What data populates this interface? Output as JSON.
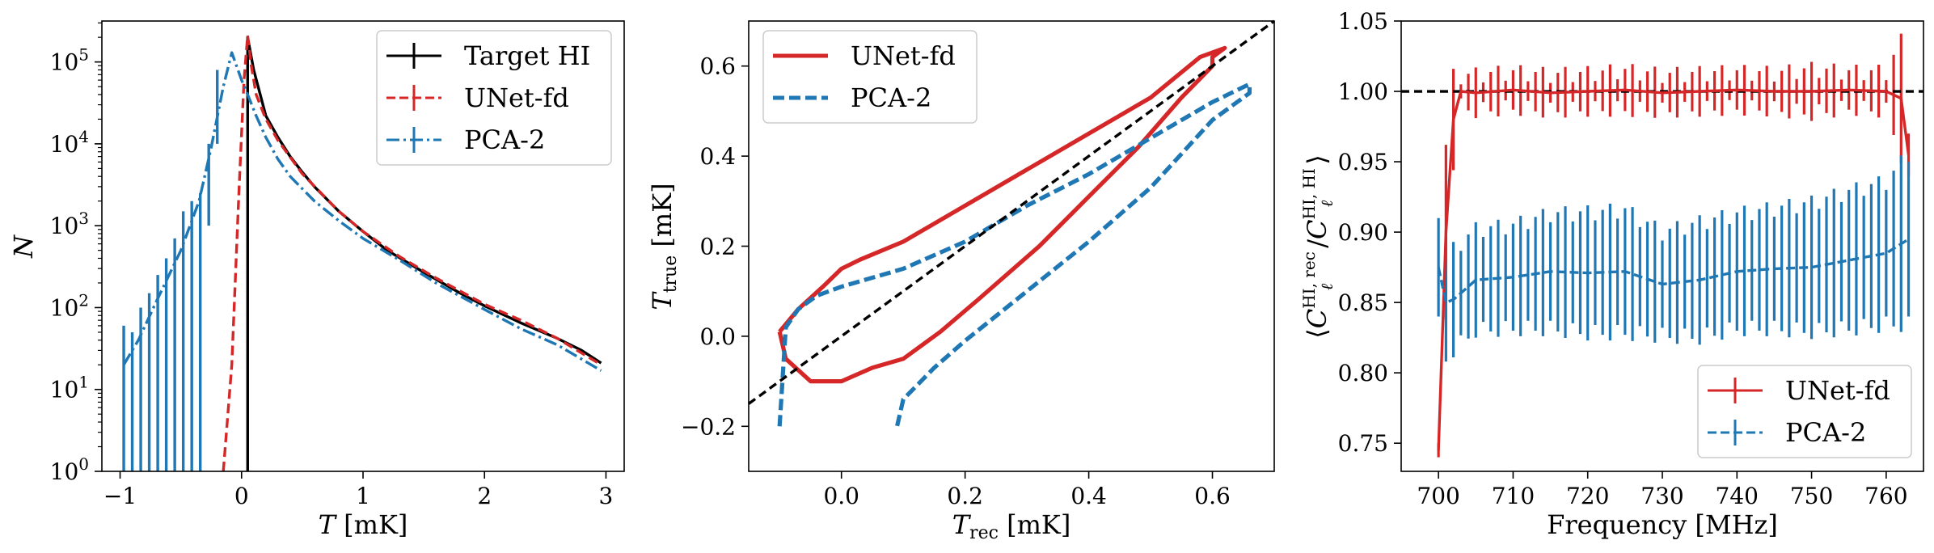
{
  "colors": {
    "black": "#000000",
    "red": "#d62728",
    "blue": "#1f77b4"
  },
  "chart_data": [
    {
      "type": "line",
      "title": "",
      "xlabel_italic": "T",
      "xlabel_rest": " [mK]",
      "ylabel": "N",
      "yscale": "log",
      "xlim": [
        -1.15,
        3.15
      ],
      "ylim_exp": [
        0,
        5.5
      ],
      "xticks": [
        -1,
        0,
        1,
        2,
        3
      ],
      "xtick_labels": [
        "−1",
        "0",
        "1",
        "2",
        "3"
      ],
      "yticks_exp": [
        0,
        1,
        2,
        3,
        4,
        5
      ],
      "ytick_base": "10",
      "ytick_exp_labels": [
        "0",
        "1",
        "2",
        "3",
        "4",
        "5"
      ],
      "legend": [
        "Target HI",
        "UNet-fd",
        "PCA-2"
      ],
      "legend_loc": "upper right",
      "series": [
        {
          "name": "Target HI",
          "color": "#000000",
          "style": "solid",
          "x": [
            0.05,
            0.05,
            0.1,
            0.2,
            0.3,
            0.4,
            0.5,
            0.6,
            0.8,
            1.0,
            1.2,
            1.5,
            1.8,
            2.0,
            2.3,
            2.6,
            2.8,
            2.96
          ],
          "y": [
            1,
            200000,
            80000,
            22000,
            12000,
            7000,
            4500,
            3000,
            1500,
            850,
            500,
            270,
            150,
            105,
            65,
            42,
            30,
            21
          ]
        },
        {
          "name": "UNet-fd",
          "color": "#d62728",
          "style": "dashed",
          "x": [
            -0.15,
            -0.08,
            -0.02,
            0.02,
            0.05,
            0.08,
            0.12,
            0.2,
            0.3,
            0.5,
            0.8,
            1.0,
            1.3,
            1.6,
            2.0,
            2.3,
            2.6,
            2.96
          ],
          "y": [
            1,
            20,
            3000,
            60000,
            210000,
            90000,
            40000,
            20000,
            11000,
            4300,
            1500,
            850,
            420,
            230,
            110,
            70,
            42,
            20
          ]
        },
        {
          "name": "PCA-2",
          "color": "#1f77b4",
          "style": "dashdot",
          "x": [
            -0.97,
            -0.85,
            -0.7,
            -0.5,
            -0.35,
            -0.25,
            -0.15,
            -0.08,
            0.0,
            0.05,
            0.12,
            0.2,
            0.3,
            0.4,
            0.6,
            0.8,
            1.0,
            1.3,
            1.6,
            2.0,
            2.3,
            2.6,
            2.96
          ],
          "y": [
            20,
            40,
            120,
            500,
            2000,
            9000,
            50000,
            130000,
            60000,
            40000,
            22000,
            12000,
            6500,
            4000,
            2000,
            1150,
            700,
            380,
            200,
            95,
            55,
            35,
            17
          ]
        }
      ],
      "errorbars": [
        {
          "series": "PCA-2",
          "x": [
            -0.97,
            -0.9,
            -0.83,
            -0.76,
            -0.69,
            -0.62,
            -0.55,
            -0.48,
            -0.41,
            -0.34,
            -0.27,
            -0.2
          ],
          "lo": [
            1,
            1,
            1,
            1,
            1,
            1,
            1,
            1,
            1,
            1,
            1000,
            10000
          ],
          "hi": [
            60,
            50,
            100,
            150,
            250,
            400,
            700,
            1500,
            2000,
            2500,
            10000,
            80000
          ]
        }
      ]
    },
    {
      "type": "line",
      "title": "",
      "xlabel_italic": "T",
      "xlabel_sub": "rec",
      "xlabel_rest": " [mK]",
      "ylabel_italic": "T",
      "ylabel_sub": "true",
      "ylabel_rest": " [mK]",
      "xlim": [
        -0.15,
        0.7
      ],
      "ylim": [
        -0.3,
        0.7
      ],
      "xticks": [
        0.0,
        0.2,
        0.4,
        0.6
      ],
      "xtick_labels": [
        "0.0",
        "0.2",
        "0.4",
        "0.6"
      ],
      "yticks": [
        -0.2,
        0.0,
        0.2,
        0.4,
        0.6
      ],
      "ytick_labels": [
        "−0.2",
        "0.0",
        "0.2",
        "0.4",
        "0.6"
      ],
      "legend": [
        "UNet-fd",
        "PCA-2"
      ],
      "legend_loc": "upper left",
      "series": [
        {
          "name": "UNet-fd",
          "color": "#d62728",
          "style": "solid",
          "x": [
            -0.1,
            -0.07,
            -0.03,
            0.0,
            0.03,
            0.1,
            0.2,
            0.3,
            0.4,
            0.5,
            0.58,
            0.62,
            0.6,
            0.6,
            0.55,
            0.48,
            0.4,
            0.32,
            0.22,
            0.16,
            0.1,
            0.05,
            0.0,
            -0.05,
            -0.09,
            -0.1
          ],
          "y": [
            0.01,
            0.06,
            0.11,
            0.15,
            0.17,
            0.21,
            0.29,
            0.37,
            0.45,
            0.53,
            0.62,
            0.64,
            0.62,
            0.6,
            0.53,
            0.42,
            0.31,
            0.2,
            0.08,
            0.01,
            -0.05,
            -0.07,
            -0.1,
            -0.1,
            -0.05,
            0.01
          ]
        },
        {
          "name": "PCA-2",
          "color": "#1f77b4",
          "style": "dashed",
          "x": [
            -0.1,
            -0.09,
            -0.07,
            -0.04,
            0.0,
            0.05,
            0.1,
            0.2,
            0.3,
            0.4,
            0.5,
            0.6,
            0.66,
            0.66,
            0.6,
            0.5,
            0.4,
            0.3,
            0.2,
            0.15,
            0.1,
            0.09
          ],
          "y": [
            -0.2,
            0.02,
            0.06,
            0.09,
            0.11,
            0.13,
            0.15,
            0.21,
            0.29,
            0.36,
            0.44,
            0.52,
            0.56,
            0.54,
            0.48,
            0.33,
            0.21,
            0.1,
            -0.01,
            -0.07,
            -0.14,
            -0.2
          ]
        },
        {
          "name": "Diagonal",
          "color": "#000000",
          "style": "dashed",
          "x": [
            -0.15,
            0.7
          ],
          "y": [
            -0.15,
            0.7
          ]
        }
      ]
    },
    {
      "type": "line",
      "title": "",
      "xlabel": "Frequency [MHz]",
      "ylabel_inner": "C",
      "ylabel_super_num": "HI, rec",
      "ylabel_super_den": "HI, HI",
      "ylabel_sub": "ℓ",
      "xlim": [
        695,
        765
      ],
      "ylim": [
        0.73,
        1.05
      ],
      "xticks": [
        700,
        710,
        720,
        730,
        740,
        750,
        760
      ],
      "xtick_labels": [
        "700",
        "710",
        "720",
        "730",
        "740",
        "750",
        "760"
      ],
      "yticks": [
        0.75,
        0.8,
        0.85,
        0.9,
        0.95,
        1.0,
        1.05
      ],
      "ytick_labels": [
        "0.75",
        "0.80",
        "0.85",
        "0.90",
        "0.95",
        "1.00",
        "1.05"
      ],
      "reference_line": 1.0,
      "legend": [
        "UNet-fd",
        "PCA-2"
      ],
      "legend_loc": "lower right",
      "series": [
        {
          "name": "UNet-fd",
          "color": "#d62728",
          "style": "solid",
          "x": [
            700,
            701,
            702,
            703,
            705,
            710,
            715,
            720,
            725,
            730,
            735,
            740,
            745,
            750,
            755,
            760,
            762,
            763
          ],
          "y": [
            0.745,
            0.9,
            0.98,
            1.0,
            0.999,
            1.001,
            0.999,
            1.0,
            1.001,
            0.999,
            1.0,
            1.001,
            1.0,
            1.0,
            1.001,
            1.0,
            0.995,
            0.955
          ],
          "err": [
            0.0,
            0.06,
            0.03,
            0.01,
            0.012,
            0.012,
            0.012,
            0.012,
            0.013,
            0.012,
            0.012,
            0.012,
            0.012,
            0.015,
            0.012,
            0.013,
            0.04,
            0.02
          ]
        },
        {
          "name": "PCA-2",
          "color": "#1f77b4",
          "style": "dashed",
          "x": [
            700,
            701,
            702,
            705,
            710,
            715,
            720,
            725,
            730,
            735,
            740,
            745,
            750,
            755,
            760,
            763
          ],
          "y": [
            0.875,
            0.85,
            0.852,
            0.866,
            0.868,
            0.872,
            0.871,
            0.872,
            0.863,
            0.866,
            0.872,
            0.874,
            0.875,
            0.88,
            0.885,
            0.895
          ],
          "err": [
            0.04,
            0.04,
            0.035,
            0.035,
            0.036,
            0.04,
            0.042,
            0.043,
            0.036,
            0.04,
            0.04,
            0.042,
            0.045,
            0.048,
            0.05,
            0.06
          ]
        }
      ]
    }
  ]
}
